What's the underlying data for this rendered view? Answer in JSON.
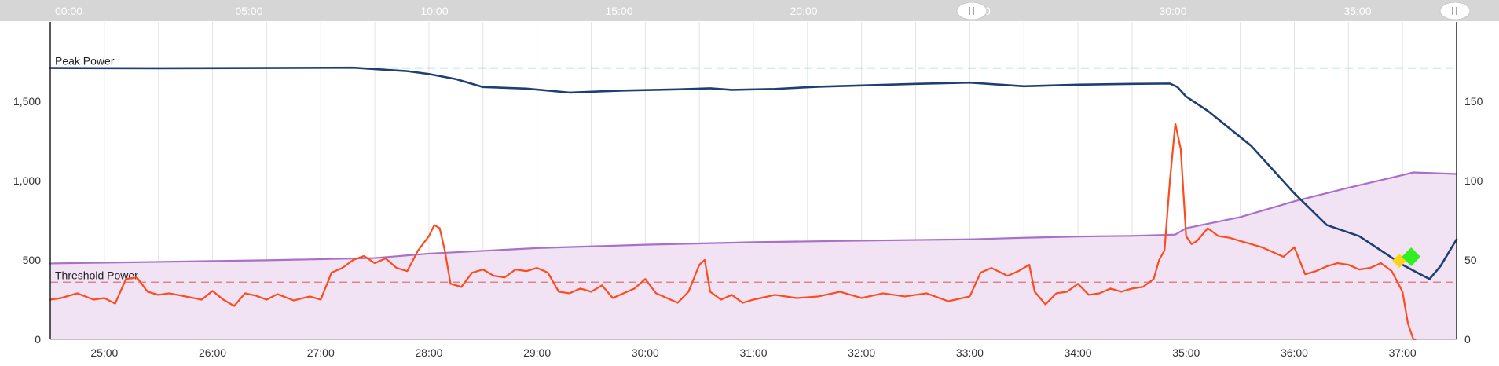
{
  "timeline": {
    "labels": [
      "00:00",
      "05:00",
      "10:00",
      "15:00",
      "20:00",
      ":00",
      "30:00",
      "35:00"
    ],
    "handle_left_icon": "pause-handle-icon",
    "handle_right_icon": "pause-handle-icon",
    "window_start_min": 24.5,
    "window_end_min": 37.5
  },
  "colors": {
    "peak_line": "#1f3f73",
    "threshold_line": "#a970c9",
    "threshold_fill": "#f1e2f4",
    "power_line": "#ff4a1c",
    "peak_ref": "#5fbfb6",
    "threshold_ref": "#d9737f",
    "marker_green": "#33ee22",
    "marker_yellow": "#ffd21a"
  },
  "chart_data": {
    "type": "line",
    "x_unit": "minutes",
    "xlim": [
      24.5,
      37.5
    ],
    "x_ticks": [
      "25:00",
      "26:00",
      "27:00",
      "28:00",
      "29:00",
      "30:00",
      "31:00",
      "32:00",
      "33:00",
      "34:00",
      "35:00",
      "36:00",
      "37:00"
    ],
    "y_left_ticks": [
      "0",
      "500",
      "1,000",
      "1,500"
    ],
    "y_left_lim": [
      0,
      2000
    ],
    "y_right_ticks": [
      "0",
      "50",
      "100",
      "150"
    ],
    "y_right_lim": [
      0,
      200
    ],
    "grid": true,
    "reference_lines": [
      {
        "label": "Peak Power",
        "value": 1710
      },
      {
        "label": "Threshold Power",
        "value": 360
      }
    ],
    "series": [
      {
        "key": "peak",
        "x": [
          24.5,
          25.5,
          26.5,
          27.3,
          27.8,
          28.0,
          28.25,
          28.5,
          28.9,
          29.3,
          29.8,
          30.3,
          30.6,
          30.8,
          31.2,
          31.6,
          32.0,
          32.5,
          33.0,
          33.5,
          34.0,
          34.5,
          34.85,
          34.92,
          35.0,
          35.2,
          35.6,
          36.0,
          36.3,
          36.6,
          36.8,
          37.0,
          37.15,
          37.25,
          37.35,
          37.5
        ],
        "y": [
          1710,
          1708,
          1710,
          1712,
          1690,
          1672,
          1640,
          1590,
          1580,
          1555,
          1568,
          1575,
          1582,
          1572,
          1578,
          1592,
          1600,
          1610,
          1618,
          1595,
          1605,
          1610,
          1612,
          1590,
          1530,
          1440,
          1220,
          920,
          720,
          650,
          560,
          470,
          415,
          380,
          460,
          630
        ]
      },
      {
        "key": "threshold",
        "x": [
          24.5,
          25.5,
          26.5,
          27.5,
          28.0,
          29.0,
          30.0,
          31.0,
          32.0,
          33.0,
          33.5,
          34.0,
          34.5,
          34.9,
          35.0,
          35.5,
          36.0,
          36.5,
          37.0,
          37.1,
          37.5
        ],
        "y": [
          478,
          488,
          498,
          512,
          540,
          575,
          596,
          612,
          622,
          630,
          640,
          648,
          652,
          660,
          700,
          770,
          870,
          955,
          1035,
          1052,
          1042
        ]
      },
      {
        "key": "power",
        "x": [
          24.5,
          24.6,
          24.75,
          24.9,
          25.0,
          25.1,
          25.2,
          25.3,
          25.4,
          25.5,
          25.6,
          25.75,
          25.9,
          26.0,
          26.1,
          26.2,
          26.3,
          26.4,
          26.5,
          26.6,
          26.75,
          26.9,
          27.0,
          27.1,
          27.2,
          27.3,
          27.4,
          27.5,
          27.6,
          27.7,
          27.8,
          27.9,
          28.0,
          28.05,
          28.1,
          28.15,
          28.2,
          28.3,
          28.4,
          28.5,
          28.6,
          28.7,
          28.8,
          28.9,
          29.0,
          29.1,
          29.2,
          29.3,
          29.4,
          29.5,
          29.6,
          29.7,
          29.8,
          29.9,
          30.0,
          30.1,
          30.2,
          30.3,
          30.4,
          30.5,
          30.55,
          30.6,
          30.7,
          30.8,
          30.9,
          31.0,
          31.2,
          31.4,
          31.6,
          31.8,
          32.0,
          32.2,
          32.4,
          32.6,
          32.8,
          33.0,
          33.1,
          33.2,
          33.35,
          33.45,
          33.55,
          33.6,
          33.7,
          33.8,
          33.9,
          34.0,
          34.1,
          34.2,
          34.3,
          34.4,
          34.5,
          34.6,
          34.7,
          34.75,
          34.8,
          34.85,
          34.9,
          34.95,
          35.0,
          35.05,
          35.1,
          35.2,
          35.3,
          35.4,
          35.5,
          35.6,
          35.7,
          35.8,
          35.9,
          36.0,
          36.1,
          36.2,
          36.3,
          36.4,
          36.5,
          36.6,
          36.7,
          36.8,
          36.9,
          37.0,
          37.05,
          37.1,
          37.12
        ],
        "y": [
          250,
          260,
          290,
          250,
          260,
          225,
          380,
          390,
          300,
          280,
          290,
          270,
          250,
          305,
          250,
          210,
          290,
          275,
          250,
          285,
          245,
          270,
          250,
          420,
          450,
          500,
          525,
          480,
          510,
          450,
          430,
          560,
          650,
          720,
          700,
          550,
          350,
          330,
          420,
          440,
          400,
          390,
          440,
          430,
          450,
          420,
          300,
          290,
          320,
          300,
          340,
          260,
          290,
          320,
          380,
          290,
          260,
          230,
          300,
          470,
          500,
          300,
          250,
          280,
          230,
          250,
          280,
          260,
          270,
          300,
          260,
          290,
          270,
          290,
          240,
          270,
          420,
          450,
          400,
          430,
          470,
          300,
          220,
          290,
          300,
          350,
          280,
          290,
          320,
          300,
          320,
          330,
          380,
          500,
          560,
          1000,
          1360,
          1200,
          650,
          600,
          620,
          700,
          650,
          640,
          620,
          600,
          580,
          550,
          520,
          580,
          410,
          430,
          460,
          480,
          470,
          440,
          450,
          480,
          430,
          300,
          100,
          0,
          0
        ]
      }
    ],
    "markers": [
      {
        "shape": "diamond",
        "color": "green",
        "x": 37.08,
        "y": 520
      },
      {
        "shape": "diamond",
        "color": "yellow",
        "x": 36.97,
        "y": 495
      }
    ]
  }
}
